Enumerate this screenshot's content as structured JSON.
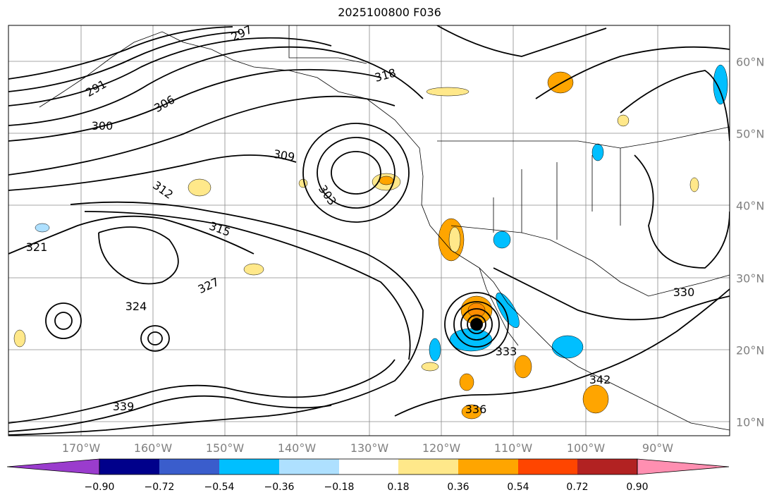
{
  "title": "2025100800 F036",
  "longitude_labels": [
    "170°W",
    "160°W",
    "150°W",
    "140°W",
    "130°W",
    "120°W",
    "110°W",
    "100°W",
    "90°W"
  ],
  "latitude_labels": [
    "60°N",
    "50°N",
    "40°N",
    "30°N",
    "20°N",
    "10°N"
  ],
  "contour_labels": [
    "291",
    "297",
    "300",
    "303",
    "306",
    "309",
    "312",
    "315",
    "318",
    "321",
    "324",
    "327",
    "330",
    "333",
    "336",
    "339",
    "342"
  ],
  "colorbar": {
    "ticks": [
      "−0.90",
      "−0.72",
      "−0.54",
      "−0.36",
      "−0.18",
      "0.18",
      "0.36",
      "0.54",
      "0.72",
      "0.90"
    ],
    "colors": [
      "#9a3ccd",
      "#00008b",
      "#3a5dcc",
      "#00bfff",
      "#aee0ff",
      "#ffffff",
      "#ffe88a",
      "#ffa500",
      "#ff4500",
      "#b22222",
      "#ff8fb1"
    ]
  }
}
